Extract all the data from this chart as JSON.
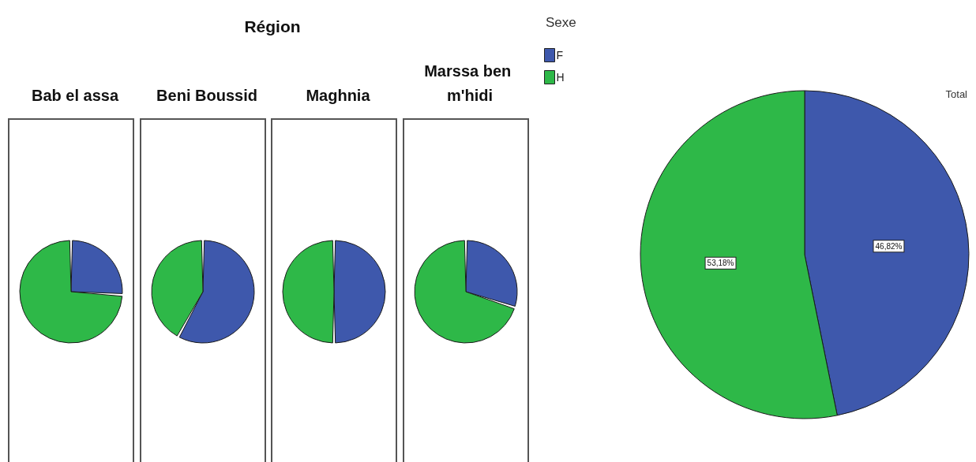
{
  "chart_data": {
    "type": "pie",
    "title": "Région",
    "legend_title": "Sexe",
    "legend": "top right",
    "categories": [
      "F",
      "H"
    ],
    "colors": [
      "#3e58ac",
      "#2eb848"
    ],
    "series": [
      {
        "name": "Bab el assa",
        "values": [
          26,
          74
        ]
      },
      {
        "name": "Beni Boussid",
        "values": [
          58,
          42
        ]
      },
      {
        "name": "Maghnia",
        "values": [
          50,
          50
        ]
      },
      {
        "name": "Marssa ben m'hidi",
        "values": [
          30,
          70
        ]
      },
      {
        "name": "Total",
        "values": [
          46.82,
          53.18
        ],
        "value_labels": [
          "46,82%",
          "53,18%"
        ]
      }
    ]
  }
}
